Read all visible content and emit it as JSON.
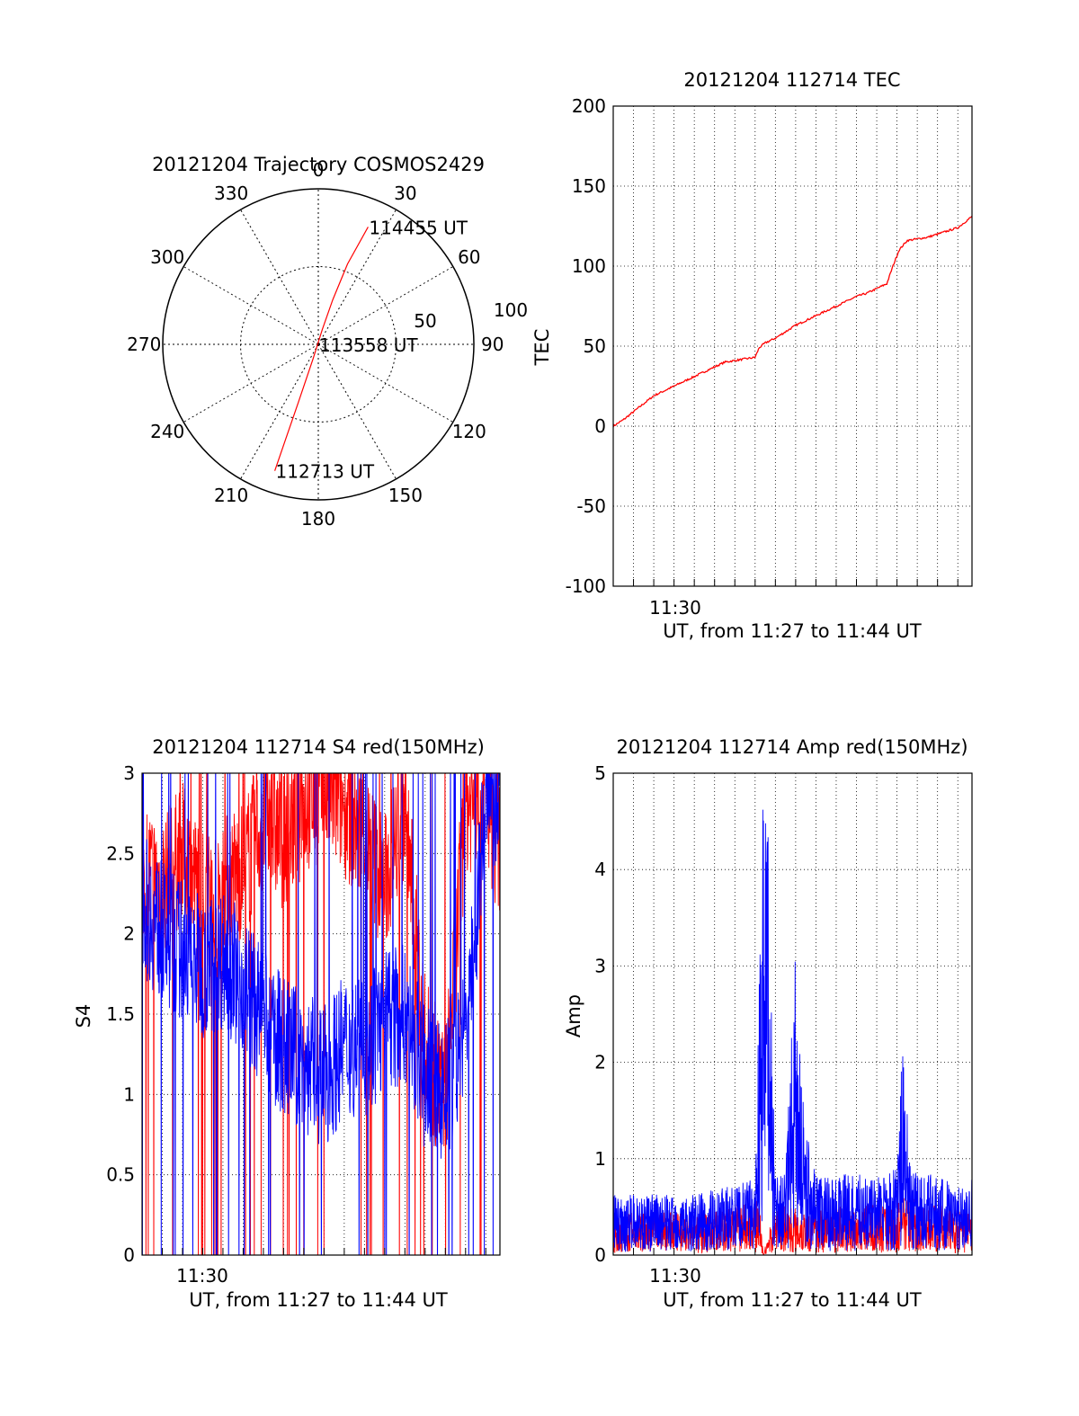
{
  "colors": {
    "red": "#ff0000",
    "blue": "#0000ff",
    "axis": "#000000",
    "grid": "#000000"
  },
  "chart_data": [
    {
      "id": "trajectory",
      "type": "polar",
      "title": "20121204 Trajectory COSMOS2429",
      "azimuth_labels": [
        "0",
        "30",
        "60",
        "90",
        "120",
        "150",
        "180",
        "210",
        "240",
        "270",
        "300",
        "330"
      ],
      "radial_labels": [
        "50",
        "100"
      ],
      "radial_max": 100,
      "point_labels": [
        {
          "text": "114455 UT",
          "az": 23,
          "r": 82
        },
        {
          "text": "113558 UT",
          "az": 0,
          "r": 0
        },
        {
          "text": "112713 UT",
          "az": 199,
          "r": 86
        }
      ],
      "trajectory": {
        "color": "red",
        "points": [
          {
            "az": 23,
            "r": 82
          },
          {
            "az": 20,
            "r": 55
          },
          {
            "az": 18,
            "r": 30
          },
          {
            "az": 15,
            "r": 10
          },
          {
            "az": 200,
            "r": 10
          },
          {
            "az": 199,
            "r": 40
          },
          {
            "az": 199,
            "r": 65
          },
          {
            "az": 199,
            "r": 86
          }
        ]
      }
    },
    {
      "id": "tec",
      "type": "line",
      "title": "20121204 112714 TEC",
      "xlabel": "UT, from 11:27 to 11:44 UT",
      "ylabel": "TEC",
      "x_tick_label": "11:30",
      "x_tick_value": 3.0,
      "xlim": [
        0.0,
        17.7
      ],
      "ylim": [
        -100,
        200
      ],
      "y_ticks": [
        "200",
        "150",
        "100",
        "50",
        "0",
        "-50",
        "-100"
      ],
      "grid": true,
      "series": [
        {
          "color": "red",
          "x": [
            0.0,
            0.5,
            1.0,
            1.5,
            2.0,
            2.5,
            3.0,
            3.5,
            4.0,
            4.5,
            5.0,
            5.5,
            6.0,
            6.5,
            7.0,
            7.2,
            7.5,
            8.0,
            8.5,
            9.0,
            9.5,
            10.0,
            10.5,
            11.0,
            11.5,
            12.0,
            12.5,
            13.0,
            13.5,
            13.8,
            14.1,
            14.5,
            15.0,
            15.5,
            16.0,
            16.5,
            17.0,
            17.7
          ],
          "y": [
            0,
            4,
            9,
            14,
            19,
            22,
            25,
            28,
            31,
            34,
            37,
            40,
            41,
            42,
            43,
            49,
            52,
            55,
            59,
            63,
            66,
            69,
            72,
            75,
            78,
            81,
            83,
            86,
            89,
            100,
            110,
            116,
            117,
            118,
            120,
            122,
            124,
            131
          ]
        }
      ]
    },
    {
      "id": "s4",
      "type": "line",
      "title": "20121204 112714 S4 red(150MHz)",
      "xlabel": "UT, from 11:27 to 11:44 UT",
      "ylabel": "S4",
      "x_tick_label": "11:30",
      "x_tick_value": 3.0,
      "xlim": [
        0.0,
        17.7
      ],
      "ylim": [
        0,
        3
      ],
      "y_ticks": [
        "3",
        "2.5",
        "2",
        "1.5",
        "1",
        "0.5",
        "0"
      ],
      "grid": true,
      "series": [
        {
          "color": "red",
          "x": [
            0.0,
            1.0,
            2.0,
            3.0,
            4.0,
            5.0,
            6.0,
            7.0,
            8.0,
            9.0,
            10.0,
            11.0,
            12.0,
            13.0,
            14.0,
            15.0,
            16.0,
            17.0,
            17.7
          ],
          "y": [
            2.4,
            2.3,
            2.5,
            2.2,
            2.3,
            2.4,
            2.7,
            2.6,
            2.8,
            2.9,
            2.8,
            2.6,
            2.3,
            2.8,
            1.3,
            0.95,
            2.8,
            2.9,
            2.5
          ]
        },
        {
          "color": "blue",
          "x": [
            0.0,
            1.0,
            2.0,
            3.0,
            4.0,
            5.0,
            6.0,
            7.0,
            8.0,
            9.0,
            10.0,
            11.0,
            12.0,
            13.0,
            14.0,
            15.0,
            16.0,
            17.0,
            17.7
          ],
          "y": [
            2.2,
            2.0,
            1.9,
            1.8,
            1.85,
            1.7,
            1.45,
            1.3,
            1.2,
            1.1,
            1.3,
            1.3,
            1.45,
            1.5,
            1.1,
            1.0,
            1.35,
            2.8,
            2.8
          ]
        }
      ]
    },
    {
      "id": "amp",
      "type": "line",
      "title": "20121204 112714 Amp red(150MHz)",
      "xlabel": "UT, from 11:27 to 11:44 UT",
      "ylabel": "Amp",
      "x_tick_label": "11:30",
      "x_tick_value": 3.0,
      "xlim": [
        0.0,
        17.7
      ],
      "ylim": [
        0,
        5
      ],
      "y_ticks": [
        "5",
        "4",
        "3",
        "2",
        "1",
        "0"
      ],
      "grid": true,
      "series": [
        {
          "color": "red",
          "x": [
            0.0,
            2.0,
            4.0,
            6.0,
            7.2,
            7.4,
            8.0,
            10.0,
            12.0,
            14.0,
            14.6,
            15.0,
            16.0,
            17.7
          ],
          "y": [
            0.4,
            0.45,
            0.4,
            0.5,
            0.55,
            0.0,
            0.5,
            0.45,
            0.5,
            0.5,
            0.8,
            0.45,
            0.5,
            0.4
          ]
        },
        {
          "color": "blue",
          "x": [
            0.0,
            1.0,
            2.0,
            3.0,
            4.0,
            5.0,
            6.0,
            7.0,
            7.4,
            7.6,
            8.0,
            8.5,
            9.0,
            9.4,
            10.0,
            11.0,
            12.0,
            13.0,
            13.5,
            14.0,
            14.3,
            14.6,
            15.0,
            16.0,
            17.0,
            17.7
          ],
          "y": [
            0.6,
            0.6,
            0.6,
            0.6,
            0.6,
            0.65,
            0.7,
            0.75,
            4.75,
            4.5,
            0.8,
            0.8,
            3.1,
            1.4,
            0.8,
            0.8,
            0.8,
            0.8,
            0.8,
            0.9,
            2.2,
            1.0,
            0.8,
            0.8,
            0.7,
            0.8
          ]
        }
      ]
    }
  ]
}
